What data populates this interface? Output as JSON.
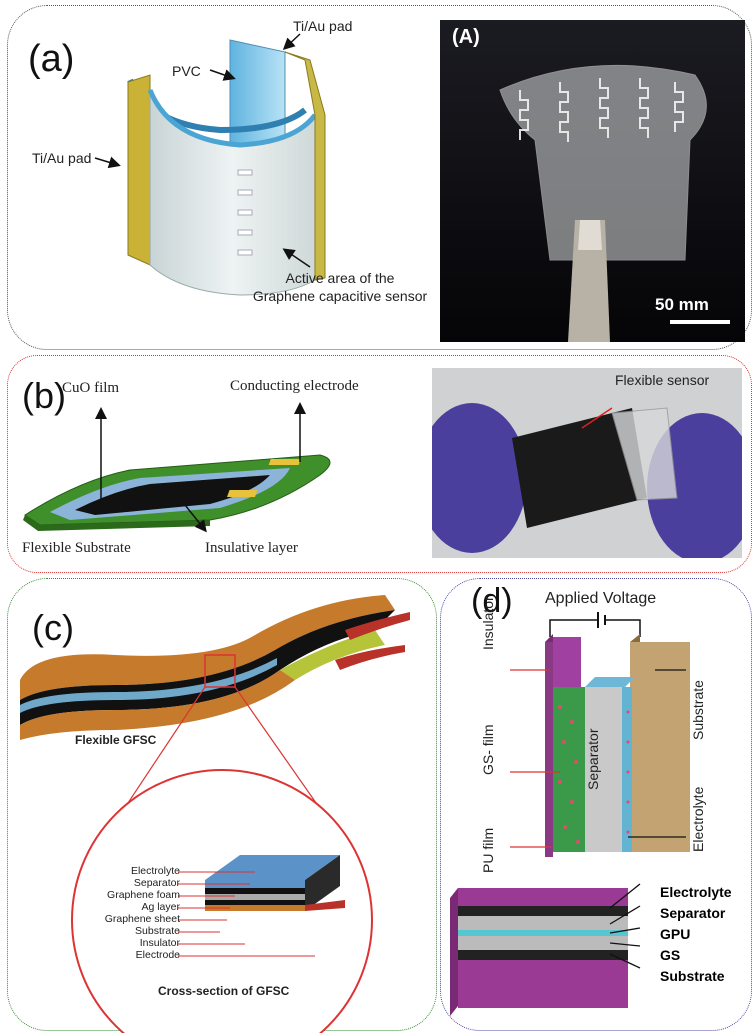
{
  "panel_a": {
    "label": "(a)",
    "pvc": "PVC",
    "pad_top": "Ti/Au pad",
    "pad_left": "Ti/Au pad",
    "active_line1": "Active area of the",
    "active_line2": "Graphene capacitive sensor",
    "photo_label": "(A)",
    "scale": "50 mm"
  },
  "panel_b": {
    "label": "(b)",
    "cuo": "CuO film",
    "conducting": "Conducting electrode",
    "substrate": "Flexible Substrate",
    "insulative": "Insulative layer",
    "sensor": "Flexible sensor"
  },
  "panel_c": {
    "label": "(c)",
    "flexible": "Flexible GFSC",
    "cross_section": "Cross-section of GFSC",
    "layers": [
      "Electrolyte",
      "Separator",
      "Graphene foam",
      "Ag layer",
      "Graphene sheet",
      "Substrate",
      "Insulator",
      "Electrode"
    ]
  },
  "panel_d": {
    "label": "(d)",
    "applied_voltage": "Applied Voltage",
    "insulator": "Insulator",
    "gs_film": "GS- film",
    "pu_film": "PU film",
    "separator": "Separator",
    "substrate": "Substrate",
    "electrolyte": "Electrolyte",
    "bottom_labels": [
      "Electrolyte",
      "Separator",
      "GPU",
      "GS",
      "Substrate"
    ]
  }
}
